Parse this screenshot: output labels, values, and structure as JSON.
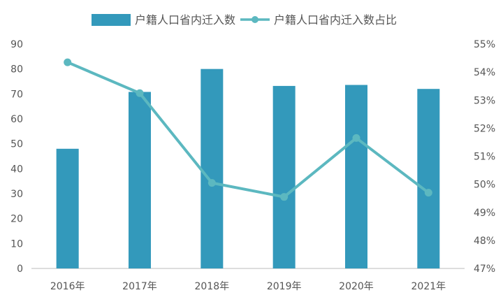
{
  "chart_data": {
    "type": "bar+line",
    "categories": [
      "2016年",
      "2017年",
      "2018年",
      "2019年",
      "2020年",
      "2021年"
    ],
    "series": [
      {
        "name": "户籍人口省内迁入数",
        "type": "bar",
        "axis": "left",
        "color": "#3399bb",
        "values": [
          48,
          70.8,
          80,
          73.2,
          73.6,
          72
        ]
      },
      {
        "name": "户籍人口省内迁入数占比",
        "type": "line",
        "axis": "right",
        "color": "#5cb8c0",
        "unit": "%",
        "values": [
          54.35,
          53.25,
          50.05,
          49.55,
          51.65,
          49.7
        ]
      }
    ],
    "y_left": {
      "min": 0,
      "max": 90,
      "ticks": [
        "0",
        "10",
        "20",
        "30",
        "40",
        "50",
        "60",
        "70",
        "80",
        "90"
      ]
    },
    "y_right": {
      "min": 47,
      "max": 55,
      "ticks": [
        "47%",
        "48%",
        "49%",
        "50%",
        "51%",
        "52%",
        "53%",
        "54%",
        "55%"
      ]
    },
    "legend": "top-center",
    "grid": false
  }
}
